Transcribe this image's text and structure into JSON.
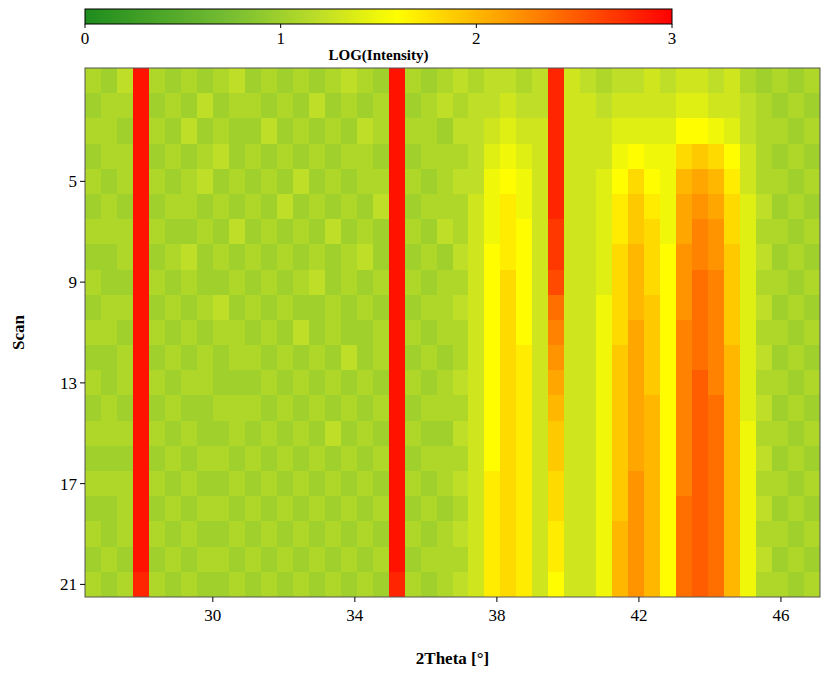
{
  "chart_data": {
    "type": "heatmap",
    "x_label": "2Theta [°]",
    "y_label": "Scan",
    "x": [
      26.625,
      27.075,
      27.525,
      27.975,
      28.425,
      28.875,
      29.325,
      29.775,
      30.225,
      30.675,
      31.125,
      31.575,
      32.025,
      32.475,
      32.925,
      33.375,
      33.825,
      34.275,
      34.725,
      35.175,
      35.625,
      36.075,
      36.525,
      36.975,
      37.425,
      37.875,
      38.325,
      38.775,
      39.225,
      39.675,
      40.125,
      40.575,
      41.025,
      41.475,
      41.925,
      42.375,
      42.825,
      43.275,
      43.725,
      44.175,
      44.625,
      45.075,
      45.525,
      45.975,
      46.425,
      46.875
    ],
    "y": [
      1,
      2,
      3,
      4,
      5,
      6,
      7,
      8,
      9,
      10,
      11,
      12,
      13,
      14,
      15,
      16,
      17,
      18,
      19,
      20,
      21
    ],
    "values": [
      [
        1.1,
        1.0,
        1.2,
        2.9,
        1.1,
        1.0,
        1.1,
        1.0,
        1.1,
        1.2,
        1.0,
        1.1,
        1.0,
        1.1,
        1.0,
        1.1,
        1.2,
        1.1,
        1.0,
        2.9,
        1.1,
        1.0,
        1.1,
        1.2,
        1.1,
        1.2,
        1.2,
        1.1,
        1.2,
        2.8,
        1.3,
        1.2,
        1.1,
        1.2,
        1.2,
        1.3,
        1.2,
        1.3,
        1.3,
        1.2,
        1.3,
        1.1,
        1.0,
        1.1,
        1.0,
        1.1
      ],
      [
        1.0,
        1.1,
        1.1,
        2.9,
        1.0,
        1.1,
        1.0,
        1.2,
        1.0,
        1.1,
        1.1,
        1.0,
        1.1,
        1.0,
        1.2,
        1.0,
        1.1,
        1.0,
        1.1,
        2.9,
        1.0,
        1.1,
        1.2,
        1.1,
        1.2,
        1.2,
        1.3,
        1.2,
        1.2,
        2.8,
        1.3,
        1.3,
        1.2,
        1.3,
        1.3,
        1.3,
        1.3,
        1.4,
        1.4,
        1.3,
        1.3,
        1.2,
        1.1,
        1.0,
        1.1,
        1.0
      ],
      [
        1.1,
        1.1,
        1.0,
        2.9,
        1.1,
        1.0,
        1.2,
        1.0,
        1.1,
        1.0,
        1.0,
        1.2,
        1.0,
        1.1,
        1.0,
        1.1,
        1.0,
        1.2,
        1.1,
        2.9,
        1.1,
        1.1,
        1.0,
        1.2,
        1.2,
        1.3,
        1.4,
        1.3,
        1.3,
        2.8,
        1.3,
        1.3,
        1.3,
        1.4,
        1.4,
        1.4,
        1.4,
        1.6,
        1.6,
        1.5,
        1.4,
        1.2,
        1.1,
        1.1,
        1.0,
        1.1
      ],
      [
        1.0,
        1.1,
        1.1,
        2.9,
        1.0,
        1.1,
        1.0,
        1.1,
        1.2,
        1.0,
        1.1,
        1.0,
        1.1,
        1.0,
        1.1,
        1.0,
        1.1,
        1.1,
        1.0,
        2.9,
        1.0,
        1.1,
        1.1,
        1.1,
        1.2,
        1.4,
        1.5,
        1.4,
        1.3,
        2.8,
        1.3,
        1.3,
        1.3,
        1.5,
        1.6,
        1.5,
        1.5,
        1.8,
        1.9,
        1.8,
        1.6,
        1.3,
        1.1,
        1.0,
        1.1,
        1.0
      ],
      [
        1.1,
        1.0,
        1.1,
        2.9,
        1.1,
        1.0,
        1.1,
        1.2,
        1.0,
        1.1,
        1.0,
        1.1,
        1.0,
        1.2,
        1.0,
        1.1,
        1.0,
        1.1,
        1.1,
        2.9,
        1.1,
        1.0,
        1.1,
        1.2,
        1.2,
        1.5,
        1.6,
        1.5,
        1.3,
        2.8,
        1.3,
        1.3,
        1.4,
        1.6,
        1.8,
        1.6,
        1.5,
        2.0,
        2.1,
        2.0,
        1.7,
        1.3,
        1.1,
        1.1,
        1.0,
        1.1
      ],
      [
        1.0,
        1.1,
        1.0,
        2.9,
        1.0,
        1.1,
        1.1,
        1.0,
        1.1,
        1.0,
        1.1,
        1.0,
        1.2,
        1.0,
        1.1,
        1.0,
        1.1,
        1.0,
        1.2,
        2.9,
        1.0,
        1.1,
        1.1,
        1.1,
        1.3,
        1.5,
        1.7,
        1.5,
        1.3,
        2.8,
        1.3,
        1.3,
        1.4,
        1.7,
        1.9,
        1.7,
        1.5,
        2.1,
        2.2,
        2.1,
        1.8,
        1.4,
        1.2,
        1.0,
        1.1,
        1.0
      ],
      [
        1.1,
        1.1,
        1.1,
        2.9,
        1.1,
        1.0,
        1.0,
        1.1,
        1.0,
        1.2,
        1.0,
        1.1,
        1.0,
        1.1,
        1.0,
        1.2,
        1.0,
        1.1,
        1.0,
        2.9,
        1.1,
        1.0,
        1.2,
        1.1,
        1.3,
        1.5,
        1.7,
        1.6,
        1.3,
        2.7,
        1.3,
        1.3,
        1.4,
        1.7,
        1.9,
        1.8,
        1.5,
        2.1,
        2.3,
        2.2,
        1.8,
        1.4,
        1.1,
        1.1,
        1.0,
        1.1
      ],
      [
        1.0,
        1.0,
        1.1,
        2.9,
        1.0,
        1.1,
        1.2,
        1.0,
        1.1,
        1.0,
        1.1,
        1.0,
        1.1,
        1.0,
        1.1,
        1.0,
        1.1,
        1.2,
        1.0,
        2.9,
        1.0,
        1.1,
        1.0,
        1.2,
        1.3,
        1.6,
        1.7,
        1.6,
        1.3,
        2.7,
        1.3,
        1.3,
        1.4,
        1.8,
        2.0,
        1.8,
        1.6,
        2.2,
        2.3,
        2.2,
        1.9,
        1.4,
        1.2,
        1.0,
        1.1,
        1.0
      ],
      [
        1.1,
        1.0,
        1.0,
        2.9,
        1.1,
        1.0,
        1.1,
        1.0,
        1.0,
        1.1,
        1.0,
        1.1,
        1.0,
        1.1,
        1.2,
        1.0,
        1.1,
        1.0,
        1.1,
        2.9,
        1.1,
        1.0,
        1.1,
        1.1,
        1.3,
        1.6,
        1.8,
        1.6,
        1.3,
        2.6,
        1.3,
        1.3,
        1.4,
        1.8,
        2.0,
        1.8,
        1.6,
        2.2,
        2.4,
        2.3,
        1.9,
        1.4,
        1.1,
        1.1,
        1.0,
        1.1
      ],
      [
        1.0,
        1.1,
        1.1,
        2.9,
        1.0,
        1.1,
        1.0,
        1.1,
        1.2,
        1.0,
        1.1,
        1.0,
        1.1,
        1.0,
        1.0,
        1.1,
        1.0,
        1.1,
        1.0,
        2.9,
        1.0,
        1.1,
        1.1,
        1.2,
        1.3,
        1.6,
        1.8,
        1.6,
        1.3,
        2.4,
        1.3,
        1.3,
        1.5,
        1.8,
        2.0,
        1.9,
        1.6,
        2.2,
        2.4,
        2.3,
        1.9,
        1.4,
        1.2,
        1.0,
        1.1,
        1.0
      ],
      [
        1.1,
        1.1,
        1.0,
        2.9,
        1.1,
        1.0,
        1.1,
        1.0,
        1.1,
        1.1,
        1.0,
        1.1,
        1.0,
        1.2,
        1.0,
        1.1,
        1.0,
        1.0,
        1.1,
        2.9,
        1.1,
        1.0,
        1.1,
        1.1,
        1.3,
        1.6,
        1.8,
        1.6,
        1.3,
        2.3,
        1.3,
        1.3,
        1.5,
        1.8,
        2.1,
        1.9,
        1.6,
        2.3,
        2.4,
        2.3,
        1.9,
        1.4,
        1.1,
        1.1,
        1.0,
        1.1
      ],
      [
        1.0,
        1.0,
        1.1,
        2.9,
        1.0,
        1.1,
        1.0,
        1.1,
        1.0,
        1.1,
        1.1,
        1.0,
        1.1,
        1.0,
        1.1,
        1.0,
        1.2,
        1.0,
        1.1,
        2.9,
        1.0,
        1.1,
        1.0,
        1.1,
        1.3,
        1.6,
        1.8,
        1.7,
        1.3,
        2.2,
        1.3,
        1.3,
        1.5,
        1.9,
        2.1,
        1.9,
        1.6,
        2.3,
        2.4,
        2.3,
        2.0,
        1.4,
        1.2,
        1.0,
        1.1,
        1.0
      ],
      [
        1.1,
        1.0,
        1.1,
        2.9,
        1.1,
        1.0,
        1.1,
        1.1,
        1.0,
        1.0,
        1.0,
        1.1,
        1.0,
        1.1,
        1.0,
        1.1,
        1.0,
        1.1,
        1.0,
        2.9,
        1.1,
        1.0,
        1.1,
        1.2,
        1.3,
        1.6,
        1.8,
        1.7,
        1.3,
        2.1,
        1.3,
        1.3,
        1.5,
        1.9,
        2.1,
        1.9,
        1.6,
        2.3,
        2.5,
        2.3,
        2.0,
        1.4,
        1.1,
        1.1,
        1.0,
        1.1
      ],
      [
        1.0,
        1.1,
        1.0,
        2.9,
        1.0,
        1.1,
        1.0,
        1.0,
        1.1,
        1.1,
        1.1,
        1.0,
        1.1,
        1.0,
        1.1,
        1.0,
        1.1,
        1.0,
        1.1,
        2.9,
        1.0,
        1.1,
        1.1,
        1.1,
        1.3,
        1.6,
        1.8,
        1.7,
        1.3,
        2.0,
        1.3,
        1.3,
        1.5,
        1.9,
        2.1,
        2.0,
        1.6,
        2.3,
        2.5,
        2.4,
        2.0,
        1.4,
        1.2,
        1.0,
        1.1,
        1.0
      ],
      [
        1.1,
        1.1,
        1.1,
        2.9,
        1.1,
        1.0,
        1.1,
        1.0,
        1.0,
        1.1,
        1.0,
        1.1,
        1.0,
        1.1,
        1.0,
        1.2,
        1.0,
        1.1,
        1.0,
        2.9,
        1.1,
        1.0,
        1.0,
        1.2,
        1.3,
        1.6,
        1.8,
        1.7,
        1.3,
        1.9,
        1.3,
        1.3,
        1.5,
        1.9,
        2.1,
        2.0,
        1.6,
        2.3,
        2.5,
        2.4,
        2.0,
        1.5,
        1.1,
        1.1,
        1.0,
        1.1
      ],
      [
        1.0,
        1.0,
        1.0,
        2.9,
        1.0,
        1.1,
        1.0,
        1.1,
        1.1,
        1.0,
        1.1,
        1.0,
        1.1,
        1.0,
        1.1,
        1.0,
        1.1,
        1.0,
        1.1,
        2.9,
        1.0,
        1.1,
        1.1,
        1.1,
        1.3,
        1.6,
        1.8,
        1.7,
        1.3,
        1.9,
        1.3,
        1.3,
        1.5,
        1.9,
        2.1,
        2.0,
        1.6,
        2.3,
        2.5,
        2.4,
        2.0,
        1.5,
        1.2,
        1.0,
        1.1,
        1.0
      ],
      [
        1.1,
        1.1,
        1.1,
        2.9,
        1.1,
        1.0,
        1.1,
        1.0,
        1.0,
        1.1,
        1.0,
        1.1,
        1.0,
        1.1,
        1.0,
        1.1,
        1.0,
        1.1,
        1.0,
        2.9,
        1.1,
        1.0,
        1.1,
        1.2,
        1.3,
        1.7,
        1.8,
        1.7,
        1.3,
        1.8,
        1.3,
        1.3,
        1.5,
        1.9,
        2.2,
        2.0,
        1.6,
        2.3,
        2.5,
        2.4,
        2.0,
        1.5,
        1.1,
        1.1,
        1.0,
        1.1
      ],
      [
        1.0,
        1.0,
        1.1,
        2.9,
        1.0,
        1.1,
        1.0,
        1.1,
        1.1,
        1.0,
        1.1,
        1.0,
        1.1,
        1.0,
        1.1,
        1.0,
        1.1,
        1.0,
        1.1,
        2.9,
        1.0,
        1.1,
        1.0,
        1.1,
        1.3,
        1.7,
        1.8,
        1.7,
        1.3,
        1.8,
        1.3,
        1.3,
        1.5,
        1.9,
        2.2,
        2.0,
        1.6,
        2.4,
        2.5,
        2.4,
        2.0,
        1.5,
        1.2,
        1.0,
        1.1,
        1.0
      ],
      [
        1.1,
        1.0,
        1.1,
        2.9,
        1.1,
        1.0,
        1.1,
        1.0,
        1.0,
        1.1,
        1.0,
        1.1,
        1.0,
        1.1,
        1.0,
        1.1,
        1.0,
        1.1,
        1.0,
        2.9,
        1.1,
        1.0,
        1.1,
        1.2,
        1.3,
        1.7,
        1.8,
        1.7,
        1.3,
        1.7,
        1.3,
        1.3,
        1.5,
        2.0,
        2.2,
        2.0,
        1.6,
        2.4,
        2.5,
        2.4,
        2.0,
        1.5,
        1.1,
        1.1,
        1.0,
        1.1
      ],
      [
        1.0,
        1.1,
        1.0,
        2.9,
        1.0,
        1.1,
        1.0,
        1.1,
        1.1,
        1.0,
        1.1,
        1.0,
        1.1,
        1.0,
        1.1,
        1.0,
        1.1,
        1.0,
        1.1,
        2.9,
        1.0,
        1.1,
        1.1,
        1.1,
        1.3,
        1.7,
        1.8,
        1.7,
        1.3,
        1.7,
        1.3,
        1.3,
        1.5,
        2.0,
        2.2,
        2.0,
        1.6,
        2.4,
        2.5,
        2.4,
        2.0,
        1.5,
        1.2,
        1.0,
        1.1,
        1.0
      ],
      [
        1.1,
        1.0,
        1.1,
        2.8,
        1.1,
        1.0,
        1.1,
        1.0,
        1.0,
        1.1,
        1.0,
        1.1,
        1.0,
        1.1,
        1.0,
        1.1,
        1.0,
        1.1,
        1.0,
        2.8,
        1.1,
        1.0,
        1.1,
        1.2,
        1.3,
        1.7,
        1.8,
        1.7,
        1.3,
        1.6,
        1.3,
        1.3,
        1.5,
        2.0,
        2.2,
        2.0,
        1.6,
        2.4,
        2.5,
        2.4,
        2.0,
        1.5,
        1.1,
        1.1,
        1.0,
        1.1
      ]
    ],
    "xlim": [
      26.4,
      47.1
    ],
    "xticks": [
      30,
      34,
      38,
      42,
      46
    ],
    "ylim": [
      0.5,
      21.5
    ],
    "yticks": [
      5,
      9,
      13,
      17,
      21
    ],
    "colorbar": {
      "label": "LOG(Intensity)",
      "range": [
        0,
        3
      ],
      "ticks": [
        0,
        1,
        2,
        3
      ]
    }
  }
}
